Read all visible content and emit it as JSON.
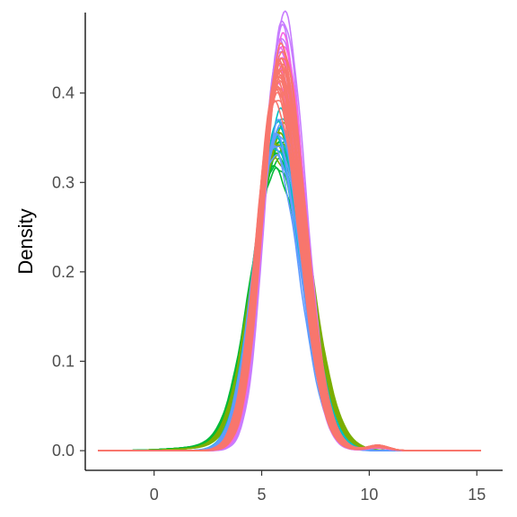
{
  "chart_data": {
    "type": "line",
    "title": "",
    "xlabel": "",
    "ylabel": "Density",
    "xlim": [
      -3.2,
      16.2
    ],
    "ylim": [
      -0.022,
      0.49
    ],
    "x_ticks": [
      0,
      5,
      10,
      15
    ],
    "x_tick_labels": [
      "0",
      "5",
      "10",
      "15"
    ],
    "y_ticks": [
      0.0,
      0.1,
      0.2,
      0.3,
      0.4
    ],
    "y_tick_labels": [
      "0.0",
      "0.1",
      "0.2",
      "0.3",
      "0.4"
    ],
    "grid": false,
    "legend": "none",
    "x_min": -2.6,
    "x_max": 15.2,
    "series": [
      {
        "color": "#00BA38",
        "mean": 5.78,
        "sd_left": 1.18,
        "sd_right": 1.3,
        "peak": 0.33,
        "tail": 0.004,
        "tail_center": 2.6,
        "tail_sd": 1.6,
        "bump": 0.0
      },
      {
        "color": "#7CAE00",
        "mean": 5.82,
        "sd_left": 1.14,
        "sd_right": 1.28,
        "peak": 0.345,
        "tail": 0.003,
        "tail_center": 2.8,
        "tail_sd": 1.5,
        "bump": 0.0
      },
      {
        "color": "#00BFC4",
        "mean": 5.75,
        "sd_left": 1.02,
        "sd_right": 1.18,
        "peak": 0.36,
        "tail": 0.0,
        "tail_center": 3.0,
        "tail_sd": 1.0,
        "bump": 0.0
      },
      {
        "color": "#619CFF",
        "mean": 5.72,
        "sd_left": 1.0,
        "sd_right": 1.15,
        "peak": 0.35,
        "tail": 0.0,
        "tail_center": 3.0,
        "tail_sd": 1.0,
        "bump": 0.0
      },
      {
        "color": "#C77CFF",
        "mean": 5.9,
        "sd_left": 0.82,
        "sd_right": 1.0,
        "peak": 0.465,
        "tail": 0.0,
        "tail_center": 3.0,
        "tail_sd": 1.0,
        "bump": 0.004
      },
      {
        "color": "#F564E3",
        "mean": 5.85,
        "sd_left": 0.86,
        "sd_right": 1.04,
        "peak": 0.44,
        "tail": 0.0,
        "tail_center": 3.0,
        "tail_sd": 1.0,
        "bump": 0.003
      },
      {
        "color": "#F8766D",
        "mean": 5.8,
        "sd_left": 0.9,
        "sd_right": 1.08,
        "peak": 0.43,
        "tail": 0.0,
        "tail_center": 3.0,
        "tail_sd": 1.0,
        "bump": 0.005
      },
      {
        "color": "#F8766D",
        "mean": 5.83,
        "sd_left": 0.88,
        "sd_right": 1.06,
        "peak": 0.42,
        "tail": 0.0,
        "tail_center": 3.0,
        "tail_sd": 1.0,
        "bump": 0.004
      },
      {
        "color": "#F8766D",
        "mean": 5.78,
        "sd_left": 0.92,
        "sd_right": 1.1,
        "peak": 0.41,
        "tail": 0.0,
        "tail_center": 3.0,
        "tail_sd": 1.0,
        "bump": 0.006
      }
    ]
  }
}
